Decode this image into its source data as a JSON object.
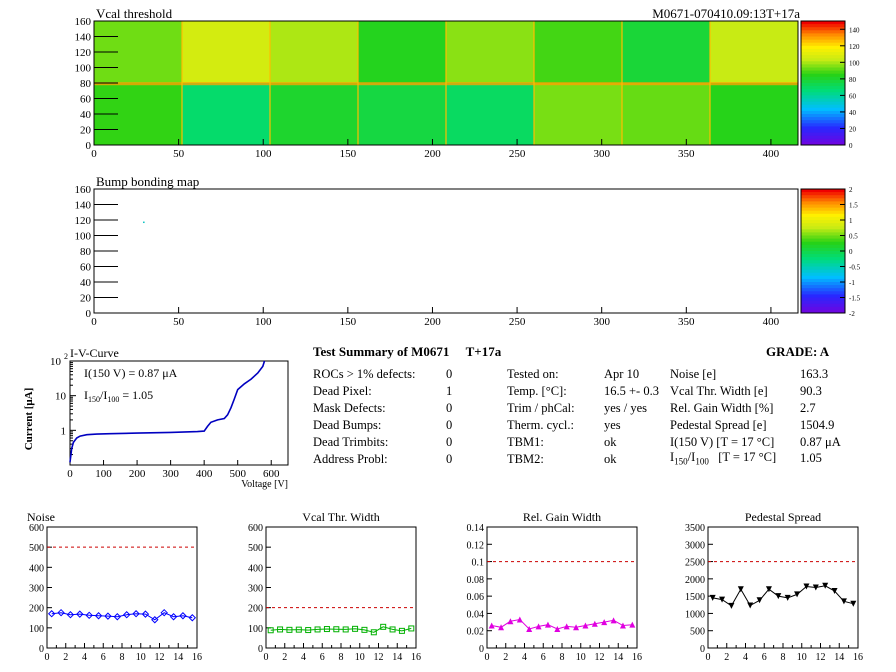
{
  "chart_data": [
    {
      "type": "heatmap",
      "title": "Vcal threshold",
      "id_label": "M0671-070410.09:13T+17a",
      "xlim": [
        0,
        416
      ],
      "ylim": [
        0,
        160
      ],
      "xticks": [
        0,
        50,
        100,
        150,
        200,
        250,
        300,
        350,
        400
      ],
      "yticks": [
        0,
        20,
        40,
        60,
        80,
        100,
        120,
        140,
        160
      ],
      "zlim": [
        0,
        150
      ],
      "colorbar_ticks": [
        0,
        20,
        40,
        60,
        80,
        100,
        120,
        140
      ],
      "roc_values": {
        "top": [
          95,
          108,
          102,
          85,
          98,
          90,
          80,
          105
        ],
        "bottom": [
          88,
          70,
          82,
          78,
          72,
          96,
          94,
          86
        ]
      }
    },
    {
      "type": "heatmap",
      "title": "Bump bonding map",
      "xlim": [
        0,
        416
      ],
      "ylim": [
        0,
        160
      ],
      "xticks": [
        0,
        50,
        100,
        150,
        200,
        250,
        300,
        350,
        400
      ],
      "yticks": [
        0,
        20,
        40,
        60,
        80,
        100,
        120,
        140,
        160
      ],
      "zlim": [
        -2,
        2
      ],
      "colorbar_ticks": [
        "2",
        "1.5",
        "1",
        "0.5",
        "0",
        "-0.5",
        "-1",
        "-1.5",
        "-2"
      ],
      "points": [
        {
          "x": 29,
          "y": 118
        }
      ]
    },
    {
      "type": "line",
      "title": "I-V-Curve",
      "xlabel": "Voltage [V]",
      "ylabel": "Current [μA]",
      "xlim": [
        0,
        650
      ],
      "ylim_log": [
        0.1,
        100
      ],
      "xticks": [
        0,
        100,
        200,
        300,
        400,
        500,
        600
      ],
      "yticks": [
        {
          "v": 1,
          "label": "1"
        },
        {
          "v": 10,
          "label": "10"
        },
        {
          "v": 100,
          "label": "10",
          "sup": "2"
        }
      ],
      "annot1": "I(150 V) = 0.87 μA",
      "annot2_pre": "I",
      "annot2_sub1": "150",
      "annot2_mid": "/I",
      "annot2_sub2": "100",
      "annot2_post": " =  1.05",
      "x": [
        0,
        5,
        10,
        20,
        30,
        50,
        80,
        120,
        200,
        300,
        380,
        400,
        410,
        420,
        440,
        460,
        470,
        480,
        490,
        500,
        520,
        540,
        560,
        575,
        580
      ],
      "y": [
        0.12,
        0.3,
        0.45,
        0.6,
        0.68,
        0.75,
        0.78,
        0.8,
        0.83,
        0.87,
        0.92,
        0.95,
        1.3,
        1.7,
        2.0,
        2.2,
        2.8,
        4.5,
        8,
        15,
        22,
        30,
        45,
        70,
        100
      ]
    },
    {
      "type": "line",
      "title": "Noise",
      "xlim": [
        0,
        16
      ],
      "ylim": [
        0,
        600
      ],
      "xticks": [
        0,
        2,
        4,
        6,
        8,
        10,
        12,
        14,
        16
      ],
      "yticks": [
        0,
        100,
        200,
        300,
        400,
        500,
        600
      ],
      "reference": 500,
      "marker": "diamond",
      "color": "#0000ff",
      "x": [
        0.5,
        1.5,
        2.5,
        3.5,
        4.5,
        5.5,
        6.5,
        7.5,
        8.5,
        9.5,
        10.5,
        11.5,
        12.5,
        13.5,
        14.5,
        15.5
      ],
      "y": [
        170,
        175,
        165,
        168,
        162,
        160,
        158,
        155,
        165,
        170,
        168,
        140,
        175,
        155,
        160,
        150
      ]
    },
    {
      "type": "line",
      "title": "Vcal Thr. Width",
      "xlim": [
        0,
        16
      ],
      "ylim": [
        0,
        600
      ],
      "xticks": [
        0,
        2,
        4,
        6,
        8,
        10,
        12,
        14,
        16
      ],
      "yticks": [
        0,
        100,
        200,
        300,
        400,
        500,
        600
      ],
      "reference": 200,
      "marker": "square",
      "color": "#00b000",
      "x": [
        0.5,
        1.5,
        2.5,
        3.5,
        4.5,
        5.5,
        6.5,
        7.5,
        8.5,
        9.5,
        10.5,
        11.5,
        12.5,
        13.5,
        14.5,
        15.5
      ],
      "y": [
        88,
        92,
        90,
        91,
        89,
        92,
        94,
        93,
        92,
        95,
        90,
        78,
        105,
        92,
        85,
        97
      ]
    },
    {
      "type": "line",
      "title": "Rel. Gain Width",
      "xlim": [
        0,
        16
      ],
      "ylim": [
        0,
        0.14
      ],
      "xticks": [
        0,
        2,
        4,
        6,
        8,
        10,
        12,
        14,
        16
      ],
      "yticks": [
        0,
        0.02,
        0.04,
        0.06,
        0.08,
        0.1,
        0.12,
        0.14
      ],
      "reference": 0.1,
      "marker": "triangle",
      "color": "#e000e0",
      "x": [
        0.5,
        1.5,
        2.5,
        3.5,
        4.5,
        5.5,
        6.5,
        7.5,
        8.5,
        9.5,
        10.5,
        11.5,
        12.5,
        13.5,
        14.5,
        15.5
      ],
      "y": [
        0.026,
        0.024,
        0.031,
        0.033,
        0.022,
        0.025,
        0.027,
        0.022,
        0.025,
        0.024,
        0.026,
        0.028,
        0.03,
        0.032,
        0.026,
        0.027
      ]
    },
    {
      "type": "line",
      "title": "Pedestal Spread",
      "xlim": [
        0,
        16
      ],
      "ylim": [
        0,
        3500
      ],
      "xticks": [
        0,
        2,
        4,
        6,
        8,
        10,
        12,
        14,
        16
      ],
      "yticks": [
        0,
        500,
        1000,
        1500,
        2000,
        2500,
        3000,
        3500
      ],
      "reference": 2500,
      "marker": "triangle-down",
      "color": "#000000",
      "x": [
        0.5,
        1.5,
        2.5,
        3.5,
        4.5,
        5.5,
        6.5,
        7.5,
        8.5,
        9.5,
        10.5,
        11.5,
        12.5,
        13.5,
        14.5,
        15.5
      ],
      "y": [
        1450,
        1400,
        1220,
        1700,
        1230,
        1380,
        1700,
        1500,
        1450,
        1550,
        1780,
        1750,
        1800,
        1650,
        1350,
        1280
      ]
    }
  ],
  "summary": {
    "title": "Test Summary of M0671",
    "tplus": "T+17a",
    "grade": "GRADE:  A",
    "col1": [
      {
        "label": "ROCs > 1% defects:",
        "value": "0"
      },
      {
        "label": "Dead Pixel:",
        "value": "1"
      },
      {
        "label": "Mask Defects:",
        "value": "0"
      },
      {
        "label": "Dead Bumps:",
        "value": "0"
      },
      {
        "label": "Dead Trimbits:",
        "value": "0"
      },
      {
        "label": "Address Probl:",
        "value": "0"
      }
    ],
    "col2": [
      {
        "label": "Tested on:",
        "value": "Apr 10"
      },
      {
        "label": "Temp. [°C]:",
        "value": "16.5 +- 0.3"
      },
      {
        "label": "Trim / phCal:",
        "value": "yes / yes"
      },
      {
        "label": "Therm. cycl.:",
        "value": "yes"
      },
      {
        "label": "TBM1:",
        "value": "ok"
      },
      {
        "label": "TBM2:",
        "value": "ok"
      }
    ],
    "col3": [
      {
        "label": "Noise [e]",
        "value": "163.3"
      },
      {
        "label": "Vcal Thr. Width [e]",
        "value": "90.3"
      },
      {
        "label": "Rel. Gain Width [%]",
        "value": "2.7"
      },
      {
        "label": "Pedestal Spread [e]",
        "value": "1504.9"
      },
      {
        "label": "I(150 V) [T = 17 °C]",
        "value": "0.87 μA"
      }
    ],
    "ratio_row": {
      "pre": "I",
      "sub1": "150",
      "mid": "/I",
      "sub2": "100",
      "post": "   [T = 17 °C]",
      "value": "1.05"
    }
  }
}
